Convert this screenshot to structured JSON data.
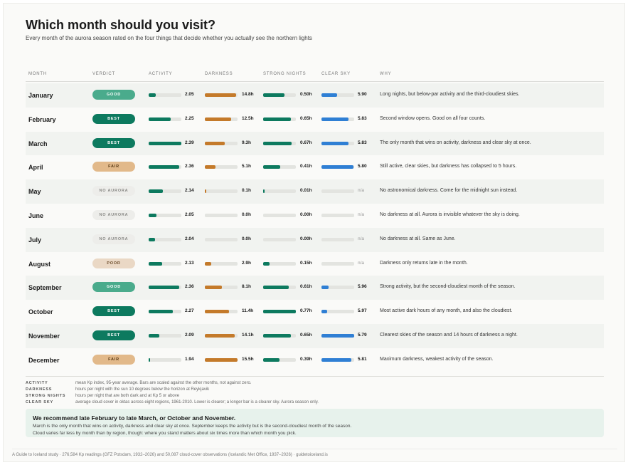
{
  "title": "Which month should you visit?",
  "subtitle": "Every month of the aurora season rated on the four things that decide whether you actually see the northern lights",
  "columns": {
    "month": "MONTH",
    "verdict": "VERDICT",
    "activity": "ACTIVITY",
    "darkness": "DARKNESS",
    "strong_nights": "STRONG NIGHTS",
    "clear_sky": "CLEAR SKY",
    "why": "WHY"
  },
  "colors": {
    "activity": "#0d7a5f",
    "darkness": "#c47a2a",
    "strong_nights": "#0d7a5f",
    "clear_sky": "#2f7fd4",
    "best": "#0d7a5f",
    "good": "#4aab8c",
    "fair": "#e2b98a",
    "poor": "#ead8c5",
    "no_aurora": "#ededea"
  },
  "chart_data": {
    "type": "table",
    "rows": [
      {
        "month": "January",
        "verdict": "GOOD",
        "verdict_class": "good",
        "activity": "2.05",
        "activity_frac": 0.22,
        "darkness": "14.8h",
        "darkness_frac": 0.95,
        "strong": "0.50h",
        "strong_frac": 0.65,
        "clear": "5.90",
        "clear_frac": 0.48,
        "why": "Long nights, but below-par activity and the third-cloudiest skies."
      },
      {
        "month": "February",
        "verdict": "BEST",
        "verdict_class": "best",
        "activity": "2.25",
        "activity_frac": 0.68,
        "darkness": "12.5h",
        "darkness_frac": 0.81,
        "strong": "0.65h",
        "strong_frac": 0.84,
        "clear": "5.83",
        "clear_frac": 0.83,
        "why": "Second window opens. Good on all four counts."
      },
      {
        "month": "March",
        "verdict": "BEST",
        "verdict_class": "best",
        "activity": "2.39",
        "activity_frac": 1.0,
        "darkness": "9.3h",
        "darkness_frac": 0.6,
        "strong": "0.67h",
        "strong_frac": 0.87,
        "clear": "5.83",
        "clear_frac": 0.83,
        "why": "The only month that wins on activity, darkness and clear sky at once."
      },
      {
        "month": "April",
        "verdict": "FAIR",
        "verdict_class": "fair",
        "activity": "2.36",
        "activity_frac": 0.93,
        "darkness": "5.1h",
        "darkness_frac": 0.33,
        "strong": "0.41h",
        "strong_frac": 0.53,
        "clear": "5.80",
        "clear_frac": 0.98,
        "why": "Still active, clear skies, but darkness has collapsed to 5 hours."
      },
      {
        "month": "May",
        "verdict": "NO AURORA",
        "verdict_class": "none",
        "activity": "2.14",
        "activity_frac": 0.44,
        "darkness": "0.1h",
        "darkness_frac": 0.01,
        "strong": "0.01h",
        "strong_frac": 0.02,
        "clear": "n/a",
        "clear_frac": 0,
        "why": "No astronomical darkness. Come for the midnight sun instead."
      },
      {
        "month": "June",
        "verdict": "NO AURORA",
        "verdict_class": "none",
        "activity": "2.05",
        "activity_frac": 0.24,
        "darkness": "0.0h",
        "darkness_frac": 0.0,
        "strong": "0.00h",
        "strong_frac": 0.0,
        "clear": "n/a",
        "clear_frac": 0,
        "why": "No darkness at all. Aurora is invisible whatever the sky is doing."
      },
      {
        "month": "July",
        "verdict": "NO AURORA",
        "verdict_class": "none",
        "activity": "2.04",
        "activity_frac": 0.2,
        "darkness": "0.0h",
        "darkness_frac": 0.0,
        "strong": "0.00h",
        "strong_frac": 0.0,
        "clear": "n/a",
        "clear_frac": 0,
        "why": "No darkness at all. Same as June."
      },
      {
        "month": "August",
        "verdict": "POOR",
        "verdict_class": "poor",
        "activity": "2.13",
        "activity_frac": 0.42,
        "darkness": "2.9h",
        "darkness_frac": 0.19,
        "strong": "0.15h",
        "strong_frac": 0.19,
        "clear": "n/a",
        "clear_frac": 0,
        "why": "Darkness only returns late in the month."
      },
      {
        "month": "September",
        "verdict": "GOOD",
        "verdict_class": "good",
        "activity": "2.36",
        "activity_frac": 0.93,
        "darkness": "8.1h",
        "darkness_frac": 0.52,
        "strong": "0.61h",
        "strong_frac": 0.79,
        "clear": "5.96",
        "clear_frac": 0.22,
        "why": "Strong activity, but the second-cloudiest month of the season."
      },
      {
        "month": "October",
        "verdict": "BEST",
        "verdict_class": "best",
        "activity": "2.27",
        "activity_frac": 0.74,
        "darkness": "11.4h",
        "darkness_frac": 0.74,
        "strong": "0.77h",
        "strong_frac": 1.0,
        "clear": "5.97",
        "clear_frac": 0.17,
        "why": "Most active dark hours of any month, and also the cloudiest."
      },
      {
        "month": "November",
        "verdict": "BEST",
        "verdict_class": "best",
        "activity": "2.09",
        "activity_frac": 0.33,
        "darkness": "14.1h",
        "darkness_frac": 0.91,
        "strong": "0.65h",
        "strong_frac": 0.84,
        "clear": "5.79",
        "clear_frac": 1.0,
        "why": "Clearest skies of the season and 14 hours of darkness a night."
      },
      {
        "month": "December",
        "verdict": "FAIR",
        "verdict_class": "fair",
        "activity": "1.94",
        "activity_frac": 0.02,
        "darkness": "15.5h",
        "darkness_frac": 1.0,
        "strong": "0.39h",
        "strong_frac": 0.51,
        "clear": "5.81",
        "clear_frac": 0.91,
        "why": "Maximum darkness, weakest activity of the season."
      }
    ]
  },
  "legend": [
    {
      "key": "ACTIVITY",
      "desc": "mean Kp index, 95-year average. Bars are scaled against the other months, not against zero."
    },
    {
      "key": "DARKNESS",
      "desc": "hours per night with the sun 10 degrees below the horizon at Reykjavik"
    },
    {
      "key": "STRONG NIGHTS",
      "desc": "hours per night that are both dark and at Kp 5 or above"
    },
    {
      "key": "CLEAR SKY",
      "desc": "average cloud cover in oktas across eight regions, 1961-2010. Lower is clearer; a longer bar is a clearer sky. Aurora season only."
    }
  ],
  "recommendation": {
    "title": "We recommend late February to late March, or October and November.",
    "line1": "March is the only month that wins on activity, darkness and clear sky at once. September keeps the activity but is the second-cloudiest month of the season.",
    "line2": "Cloud varies far less by month than by region, though: where you stand matters about six times more than which month you pick."
  },
  "footer": "A Guide to Iceland study · 276,584 Kp readings (GFZ Potsdam, 1932–2026) and 50,087 cloud-cover observations (Icelandic Met Office, 1937–2026) · guidetoiceland.is"
}
